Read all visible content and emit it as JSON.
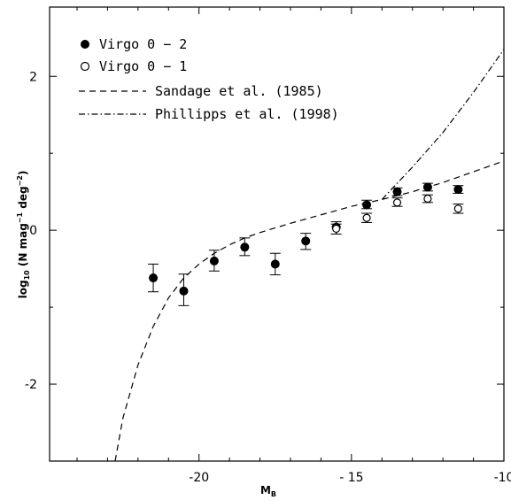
{
  "chart_data": {
    "type": "scatter",
    "title": "",
    "xlabel": "M",
    "xlabel_sub": "B",
    "ylabel": "log",
    "ylabel_sub": "10",
    "ylabel_rest": " (N mag",
    "ylabel_sup1": "−1",
    "ylabel_mid": " deg",
    "ylabel_sup2": "−2",
    "ylabel_end": ")",
    "xlim": [
      -24.9,
      -10
    ],
    "ylim": [
      -3,
      2.9
    ],
    "grid": false,
    "legend_position": "top-left",
    "x_ticks": [
      {
        "value": -20,
        "label": "-20"
      },
      {
        "value": -15,
        "label": "-  15"
      },
      {
        "value": -10,
        "label": "-10"
      }
    ],
    "y_ticks": [
      {
        "value": 2,
        "label": "2"
      },
      {
        "value": 0,
        "label": "0"
      },
      {
        "value": -2,
        "label": "-2"
      }
    ],
    "x_minor_step": 1,
    "y_minor_step": 1,
    "series": [
      {
        "name": "Virgo 0 − 2",
        "kind": "points",
        "marker": "filled-circle",
        "points": [
          {
            "x": -21.5,
            "y": -0.62,
            "ylo": -0.8,
            "yhi": -0.44
          },
          {
            "x": -20.5,
            "y": -0.79,
            "ylo": -0.98,
            "yhi": -0.57
          },
          {
            "x": -19.5,
            "y": -0.4,
            "ylo": -0.53,
            "yhi": -0.26
          },
          {
            "x": -18.5,
            "y": -0.22,
            "ylo": -0.33,
            "yhi": -0.1
          },
          {
            "x": -17.5,
            "y": -0.44,
            "ylo": -0.58,
            "yhi": -0.3
          },
          {
            "x": -16.5,
            "y": -0.14,
            "ylo": -0.25,
            "yhi": -0.04
          },
          {
            "x": -15.5,
            "y": 0.04,
            "ylo": -0.05,
            "yhi": 0.11
          },
          {
            "x": -14.5,
            "y": 0.33,
            "ylo": 0.28,
            "yhi": 0.39
          },
          {
            "x": -13.5,
            "y": 0.5,
            "ylo": 0.45,
            "yhi": 0.55
          },
          {
            "x": -12.5,
            "y": 0.56,
            "ylo": 0.51,
            "yhi": 0.61
          },
          {
            "x": -11.5,
            "y": 0.53,
            "ylo": 0.48,
            "yhi": 0.58
          }
        ]
      },
      {
        "name": "Virgo 0 − 1",
        "kind": "points",
        "marker": "open-circle",
        "points": [
          {
            "x": -15.5,
            "y": 0.02,
            "ylo": -0.05,
            "yhi": 0.08
          },
          {
            "x": -14.5,
            "y": 0.16,
            "ylo": 0.1,
            "yhi": 0.22
          },
          {
            "x": -13.5,
            "y": 0.36,
            "ylo": 0.31,
            "yhi": 0.42
          },
          {
            "x": -12.5,
            "y": 0.41,
            "ylo": 0.36,
            "yhi": 0.46
          },
          {
            "x": -11.5,
            "y": 0.28,
            "ylo": 0.22,
            "yhi": 0.34
          }
        ]
      },
      {
        "name": "Sandage et al. (1985)",
        "kind": "line",
        "dash": "dashed",
        "points": [
          {
            "x": -22.75,
            "y": -3.0
          },
          {
            "x": -22.5,
            "y": -2.45
          },
          {
            "x": -22.0,
            "y": -1.75
          },
          {
            "x": -21.5,
            "y": -1.25
          },
          {
            "x": -21.0,
            "y": -0.88
          },
          {
            "x": -20.5,
            "y": -0.62
          },
          {
            "x": -20.0,
            "y": -0.44
          },
          {
            "x": -19.5,
            "y": -0.3
          },
          {
            "x": -19.0,
            "y": -0.19
          },
          {
            "x": -18.5,
            "y": -0.1
          },
          {
            "x": -18.0,
            "y": -0.03
          },
          {
            "x": -17.0,
            "y": 0.09
          },
          {
            "x": -16.0,
            "y": 0.2
          },
          {
            "x": -15.0,
            "y": 0.31
          },
          {
            "x": -14.0,
            "y": 0.4
          },
          {
            "x": -13.0,
            "y": 0.5
          },
          {
            "x": -12.0,
            "y": 0.62
          },
          {
            "x": -11.0,
            "y": 0.76
          },
          {
            "x": -10.0,
            "y": 0.9
          }
        ]
      },
      {
        "name": "Phillipps et al. (1998)",
        "kind": "line",
        "dash": "dash-dot",
        "points": [
          {
            "x": -14.0,
            "y": 0.4
          },
          {
            "x": -13.0,
            "y": 0.82
          },
          {
            "x": -12.0,
            "y": 1.27
          },
          {
            "x": -11.0,
            "y": 1.79
          },
          {
            "x": -10.0,
            "y": 2.35
          }
        ]
      }
    ]
  }
}
